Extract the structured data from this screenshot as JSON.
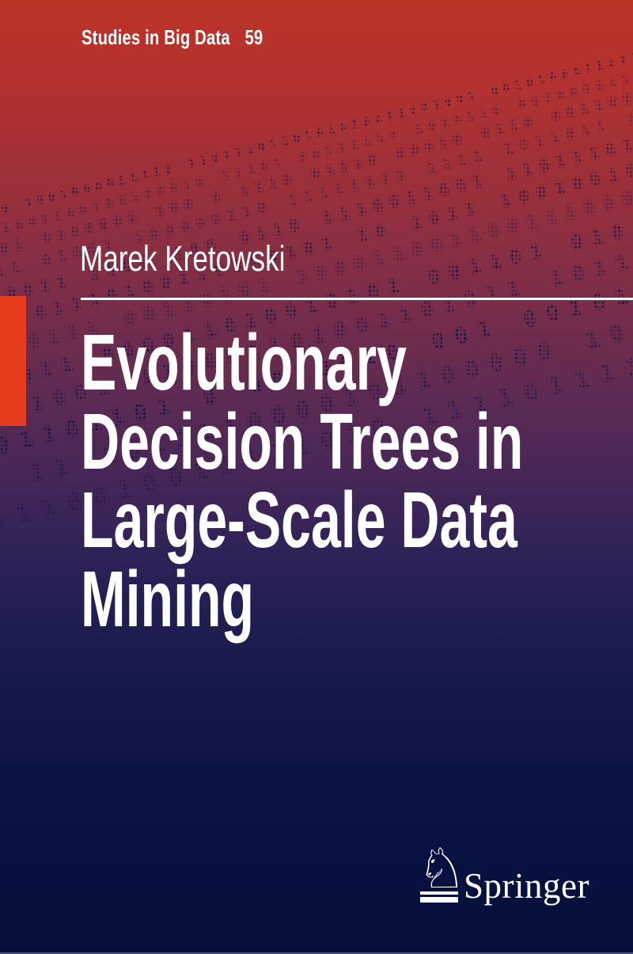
{
  "series": {
    "title": "Studies in Big Data",
    "volume": "59"
  },
  "author": "Marek Kretowski",
  "title_lines": [
    "Evolutionary",
    "Decision Trees in",
    "Large-Scale Data",
    "Mining"
  ],
  "publisher": {
    "name": "Springer",
    "icon": "springer-knight-icon"
  },
  "background": {
    "binary_digits": "01",
    "gradient_top": "#bd3328",
    "gradient_bottom": "#05103a",
    "accent_bar_color": "#e83c1e",
    "pattern_color": "#0c1345",
    "text_color": "#ffffff"
  }
}
